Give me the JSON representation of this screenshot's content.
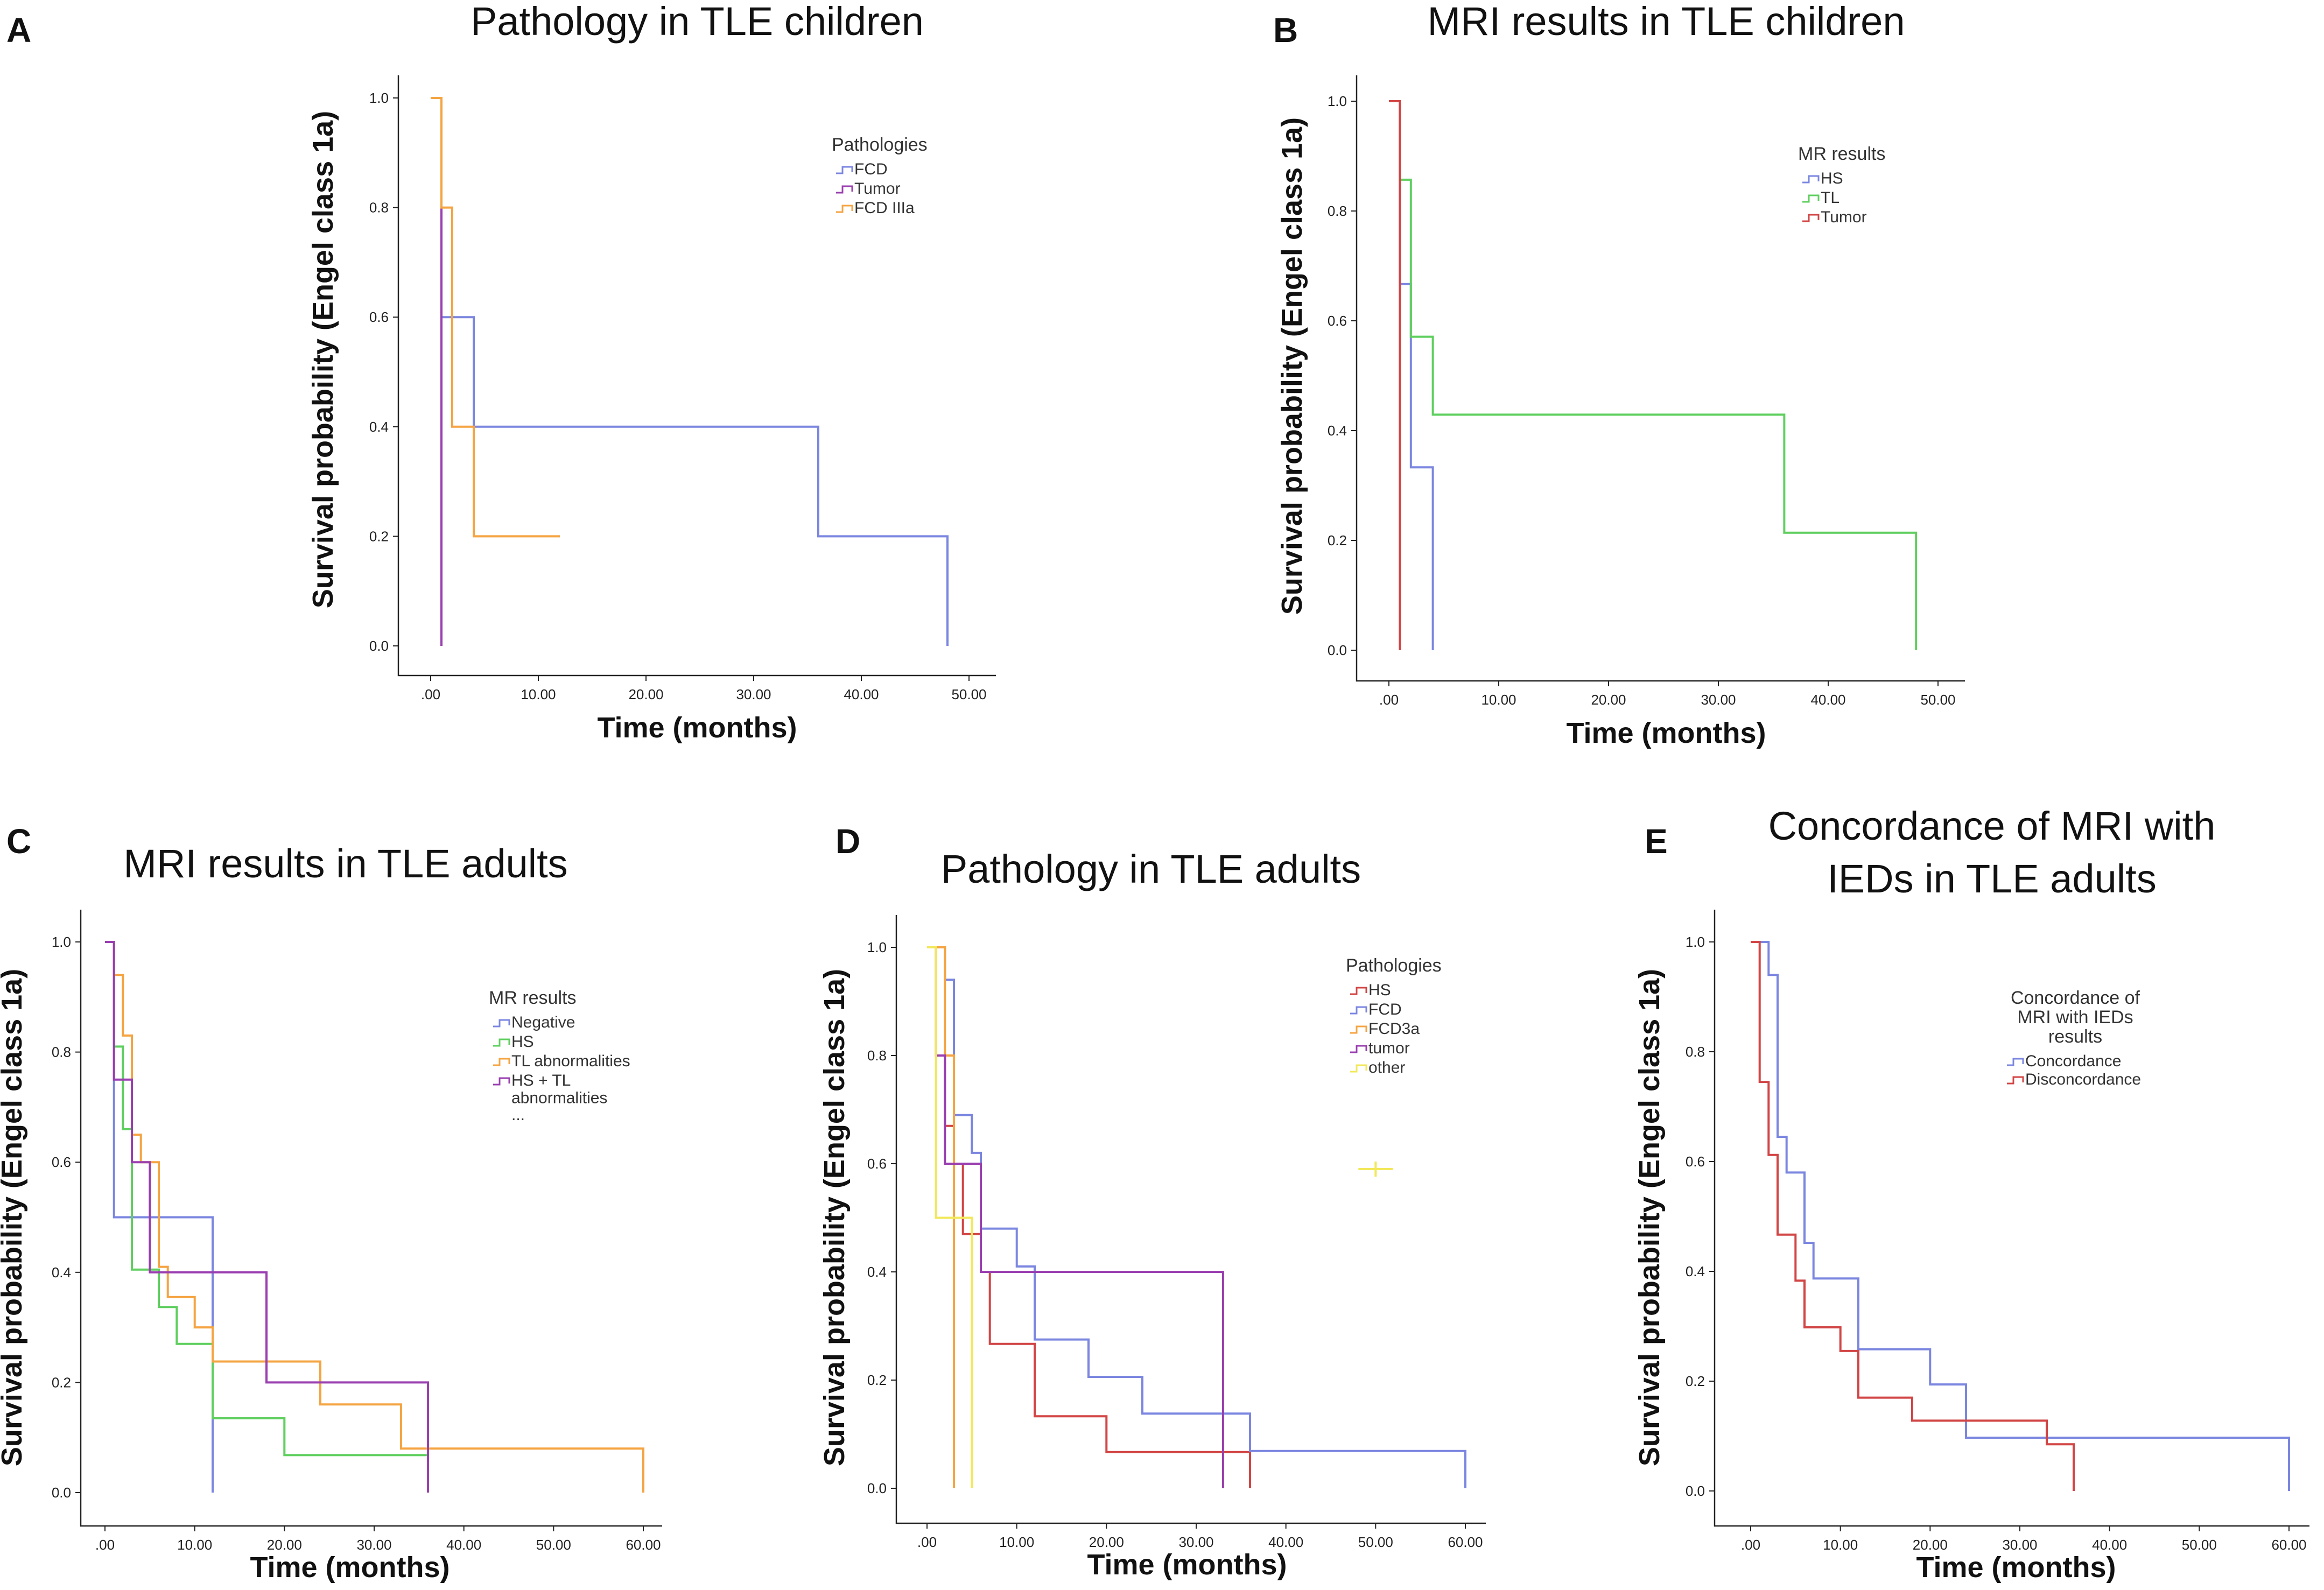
{
  "figure": {
    "ylabel": "Survival probability (Engel class 1a)",
    "xlabel": "Time (months)",
    "ytick_labels": [
      "0.0",
      "0.2",
      "0.4",
      "0.6",
      "0.8",
      "1.0"
    ],
    "colors": {
      "blue": "#7b86e0",
      "purple": "#9a3fb0",
      "orange": "#f5a442",
      "green": "#5fcf5f",
      "red": "#d24545",
      "yellow": "#f2e85a"
    }
  },
  "chart_data": [
    {
      "panel": "A",
      "type": "line",
      "step": true,
      "title": [
        "Pathology in TLE children"
      ],
      "xlabel": "Time (months)",
      "ylabel": "Survival probability (Engel class 1a)",
      "xlim": [
        -2,
        52
      ],
      "ylim": [
        0,
        1
      ],
      "xticks": [
        0,
        10,
        20,
        30,
        40,
        50
      ],
      "xtick_labels": [
        ".00",
        "10.00",
        "20.00",
        "30.00",
        "40.00",
        "50.00"
      ],
      "legend_title": [
        "Pathologies"
      ],
      "series": [
        {
          "name": "FCD",
          "color": "#7b86e0",
          "x": [
            0,
            1,
            1,
            4,
            4,
            36,
            36,
            48,
            48
          ],
          "y": [
            1.0,
            1.0,
            0.6,
            0.6,
            0.4,
            0.4,
            0.2,
            0.2,
            0.0
          ]
        },
        {
          "name": "Tumor",
          "color": "#9a3fb0",
          "x": [
            0,
            1,
            1
          ],
          "y": [
            1.0,
            1.0,
            0.0
          ]
        },
        {
          "name": "FCD IIIa",
          "color": "#f5a442",
          "x": [
            0,
            1,
            1,
            2,
            2,
            4,
            4,
            12
          ],
          "y": [
            1.0,
            1.0,
            0.8,
            0.8,
            0.4,
            0.4,
            0.2,
            0.2
          ]
        }
      ]
    },
    {
      "panel": "B",
      "type": "line",
      "step": true,
      "title": [
        "MRI results in TLE children"
      ],
      "xlabel": "Time (months)",
      "ylabel": "Survival probability (Engel class 1a)",
      "xlim": [
        -2,
        52
      ],
      "ylim": [
        0,
        1
      ],
      "xticks": [
        0,
        10,
        20,
        30,
        40,
        50
      ],
      "xtick_labels": [
        ".00",
        "10.00",
        "20.00",
        "30.00",
        "40.00",
        "50.00"
      ],
      "legend_title": [
        "MR results"
      ],
      "series": [
        {
          "name": "HS",
          "color": "#7b86e0",
          "x": [
            0,
            1,
            1,
            2,
            2,
            4,
            4
          ],
          "y": [
            1.0,
            1.0,
            0.667,
            0.667,
            0.333,
            0.333,
            0.0
          ]
        },
        {
          "name": "TL",
          "color": "#5fcf5f",
          "x": [
            0,
            1,
            1,
            2,
            2,
            4,
            4,
            36,
            36,
            48,
            48
          ],
          "y": [
            1.0,
            1.0,
            0.857,
            0.857,
            0.571,
            0.571,
            0.429,
            0.429,
            0.214,
            0.214,
            0.0
          ]
        },
        {
          "name": "Tumor",
          "color": "#d24545",
          "x": [
            0,
            1,
            1
          ],
          "y": [
            1.0,
            1.0,
            0.0
          ]
        }
      ]
    },
    {
      "panel": "C",
      "type": "line",
      "step": true,
      "title": [
        "MRI results in TLE adults"
      ],
      "xlabel": "Time (months)",
      "ylabel": "Survival probability (Engel class 1a)",
      "xlim": [
        -2,
        62
      ],
      "ylim": [
        0,
        1
      ],
      "xticks": [
        0,
        10,
        20,
        30,
        40,
        50,
        60
      ],
      "xtick_labels": [
        ".00",
        "10.00",
        "20.00",
        "30.00",
        "40.00",
        "50.00",
        "60.00"
      ],
      "legend_title": [
        "MR results"
      ],
      "legend_extra": "...",
      "series": [
        {
          "name": "Negative",
          "color": "#7b86e0",
          "x": [
            0,
            1,
            1,
            12,
            12
          ],
          "y": [
            1.0,
            1.0,
            0.5,
            0.5,
            0.0
          ]
        },
        {
          "name": "HS",
          "color": "#5fcf5f",
          "x": [
            0,
            1,
            1,
            2,
            2,
            3,
            3,
            6,
            6,
            8,
            8,
            12,
            12,
            20,
            20,
            36
          ],
          "y": [
            1.0,
            1.0,
            0.81,
            0.81,
            0.66,
            0.66,
            0.405,
            0.405,
            0.337,
            0.337,
            0.27,
            0.27,
            0.135,
            0.135,
            0.068,
            0.068
          ]
        },
        {
          "name": "TL abnormalities",
          "color": "#f5a442",
          "x": [
            0,
            1,
            1,
            2,
            2,
            3,
            3,
            4,
            4,
            6,
            6,
            7,
            7,
            10,
            10,
            12,
            12,
            24,
            24,
            33,
            33,
            60,
            60
          ],
          "y": [
            1.0,
            1.0,
            0.94,
            0.94,
            0.83,
            0.83,
            0.65,
            0.65,
            0.6,
            0.6,
            0.41,
            0.41,
            0.355,
            0.355,
            0.3,
            0.3,
            0.238,
            0.238,
            0.16,
            0.16,
            0.08,
            0.08,
            0.0
          ]
        },
        {
          "name": "HS + TL abnormalities",
          "label_lines": [
            "HS + TL",
            "abnormalities"
          ],
          "color": "#9a3fb0",
          "x": [
            0,
            1,
            1,
            3,
            3,
            5,
            5,
            18,
            18,
            36,
            36
          ],
          "y": [
            1.0,
            1.0,
            0.75,
            0.75,
            0.6,
            0.6,
            0.4,
            0.4,
            0.2,
            0.2,
            0.0
          ]
        }
      ]
    },
    {
      "panel": "D",
      "type": "line",
      "step": true,
      "title": [
        "Pathology in TLE adults"
      ],
      "xlabel": "Time (months)",
      "ylabel": "Survival probability (Engel class 1a)",
      "xlim": [
        -2,
        62
      ],
      "ylim": [
        0,
        1
      ],
      "xticks": [
        0,
        10,
        20,
        30,
        40,
        50,
        60
      ],
      "xtick_labels": [
        ".00",
        "10.00",
        "20.00",
        "30.00",
        "40.00",
        "50.00",
        "60.00"
      ],
      "legend_title": [
        "Pathologies"
      ],
      "series": [
        {
          "name": "HS",
          "color": "#d24545",
          "x": [
            0,
            1,
            1,
            2,
            2,
            3,
            3,
            4,
            4,
            6,
            6,
            7,
            7,
            12,
            12,
            20,
            20,
            36,
            36
          ],
          "y": [
            1.0,
            1.0,
            0.8,
            0.8,
            0.67,
            0.67,
            0.6,
            0.6,
            0.47,
            0.47,
            0.4,
            0.4,
            0.267,
            0.267,
            0.133,
            0.133,
            0.067,
            0.067,
            0.0
          ]
        },
        {
          "name": "FCD",
          "color": "#7b86e0",
          "x": [
            0,
            2,
            2,
            3,
            3,
            5,
            5,
            6,
            6,
            10,
            10,
            12,
            12,
            18,
            18,
            24,
            24,
            36,
            36,
            60,
            60
          ],
          "y": [
            1.0,
            1.0,
            0.94,
            0.94,
            0.69,
            0.69,
            0.62,
            0.62,
            0.48,
            0.48,
            0.41,
            0.41,
            0.275,
            0.275,
            0.206,
            0.206,
            0.138,
            0.138,
            0.069,
            0.069,
            0.0
          ]
        },
        {
          "name": "FCD3a",
          "color": "#f5a442",
          "x": [
            0,
            2,
            2,
            3,
            3
          ],
          "y": [
            1.0,
            1.0,
            0.8,
            0.8,
            0.0
          ]
        },
        {
          "name": "tumor",
          "color": "#9a3fb0",
          "x": [
            0,
            1,
            1,
            2,
            2,
            6,
            6,
            33,
            33
          ],
          "y": [
            1.0,
            1.0,
            0.8,
            0.8,
            0.6,
            0.6,
            0.4,
            0.4,
            0.0
          ]
        },
        {
          "name": "other",
          "color": "#f2e85a",
          "x": [
            0,
            1,
            1,
            3,
            3,
            5,
            5
          ],
          "y": [
            1.0,
            1.0,
            0.5,
            0.5,
            0.5,
            0.5,
            0.0
          ]
        }
      ],
      "censor_marks": [
        {
          "color": "#f2e85a",
          "x": 50,
          "y": 0.59
        }
      ]
    },
    {
      "panel": "E",
      "type": "line",
      "step": true,
      "title": [
        "Concordance of MRI with",
        "IEDs in TLE adults"
      ],
      "xlabel": "Time (months)",
      "ylabel": "Survival probability (Engel class 1a)",
      "xlim": [
        -2,
        62
      ],
      "ylim": [
        0,
        1
      ],
      "xticks": [
        0,
        10,
        20,
        30,
        40,
        50,
        60
      ],
      "xtick_labels": [
        ".00",
        "10.00",
        "20.00",
        "30.00",
        "40.00",
        "50.00",
        "60.00"
      ],
      "legend_title": [
        "Concordance of",
        "MRI with IEDs",
        "results"
      ],
      "series": [
        {
          "name": "Concordance",
          "color": "#7b86e0",
          "x": [
            0,
            2,
            2,
            3,
            3,
            4,
            4,
            6,
            6,
            7,
            7,
            12,
            12,
            20,
            20,
            24,
            24,
            60,
            60
          ],
          "y": [
            1.0,
            1.0,
            0.94,
            0.94,
            0.645,
            0.645,
            0.58,
            0.58,
            0.452,
            0.452,
            0.387,
            0.387,
            0.258,
            0.258,
            0.194,
            0.194,
            0.097,
            0.097,
            0.0
          ]
        },
        {
          "name": "Disconcordance",
          "color": "#d24545",
          "x": [
            0,
            1,
            1,
            2,
            2,
            3,
            3,
            5,
            5,
            6,
            6,
            10,
            10,
            12,
            12,
            18,
            18,
            33,
            33,
            36,
            36
          ],
          "y": [
            1.0,
            1.0,
            0.745,
            0.745,
            0.612,
            0.612,
            0.467,
            0.467,
            0.383,
            0.383,
            0.298,
            0.298,
            0.255,
            0.255,
            0.17,
            0.17,
            0.128,
            0.128,
            0.085,
            0.085,
            0.0
          ]
        }
      ]
    }
  ]
}
